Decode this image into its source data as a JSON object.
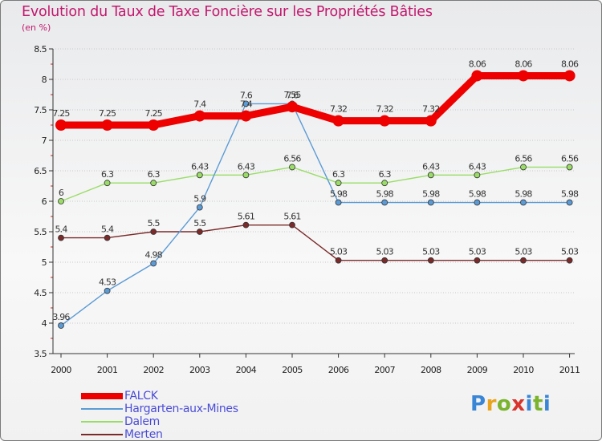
{
  "chart_data": {
    "type": "line",
    "title": "Evolution du Taux de Taxe Foncière sur les Propriétés Bâties",
    "unit": "(en %)",
    "x": [
      "2000",
      "2001",
      "2002",
      "2003",
      "2004",
      "2005",
      "2006",
      "2007",
      "2008",
      "2009",
      "2010",
      "2011"
    ],
    "ylim": [
      3.5,
      8.5
    ],
    "yticks": [
      "3.5",
      "4",
      "4.5",
      "5",
      "5.5",
      "6",
      "6.5",
      "7",
      "7.5",
      "8",
      "8.5"
    ],
    "series": [
      {
        "name": "FALCK",
        "color": "#ee0000",
        "values": [
          7.25,
          7.25,
          7.25,
          7.4,
          7.4,
          7.55,
          7.32,
          7.32,
          7.32,
          8.06,
          8.06,
          8.06
        ],
        "labels": [
          "7.25",
          "7.25",
          "7.25",
          "7.4",
          "7.4",
          "7.55",
          "7.32",
          "7.32",
          "7.32",
          "8.06",
          "8.06",
          "8.06"
        ]
      },
      {
        "name": "Hargarten-aux-Mines",
        "color": "#5b9bd5",
        "values": [
          3.96,
          4.53,
          4.98,
          5.9,
          7.6,
          7.6,
          5.98,
          5.98,
          5.98,
          5.98,
          5.98,
          5.98
        ],
        "labels": [
          "3.96",
          "4.53",
          "4.98",
          "5.9",
          "7.6",
          "7.6",
          "5.98",
          "5.98",
          "5.98",
          "5.98",
          "5.98",
          "5.98"
        ]
      },
      {
        "name": "Dalem",
        "color": "#99dd66",
        "values": [
          6,
          6.3,
          6.3,
          6.43,
          6.43,
          6.56,
          6.3,
          6.3,
          6.43,
          6.43,
          6.56,
          6.56
        ],
        "labels": [
          "6",
          "6.3",
          "6.3",
          "6.43",
          "6.43",
          "6.56",
          "6.3",
          "6.3",
          "6.43",
          "6.43",
          "6.56",
          "6.56"
        ]
      },
      {
        "name": "Merten",
        "color": "#7b2a2a",
        "values": [
          5.4,
          5.4,
          5.5,
          5.5,
          5.61,
          5.61,
          5.03,
          5.03,
          5.03,
          5.03,
          5.03,
          5.03
        ],
        "labels": [
          "5.4",
          "5.4",
          "5.5",
          "5.5",
          "5.61",
          "5.61",
          "5.03",
          "5.03",
          "5.03",
          "5.03",
          "5.03",
          "5.03"
        ]
      }
    ],
    "legend_position": "bottom-left"
  },
  "logo": {
    "text": "Proxiti",
    "parts": [
      "P",
      "r",
      "o",
      "x",
      "i",
      "t",
      "i"
    ]
  }
}
